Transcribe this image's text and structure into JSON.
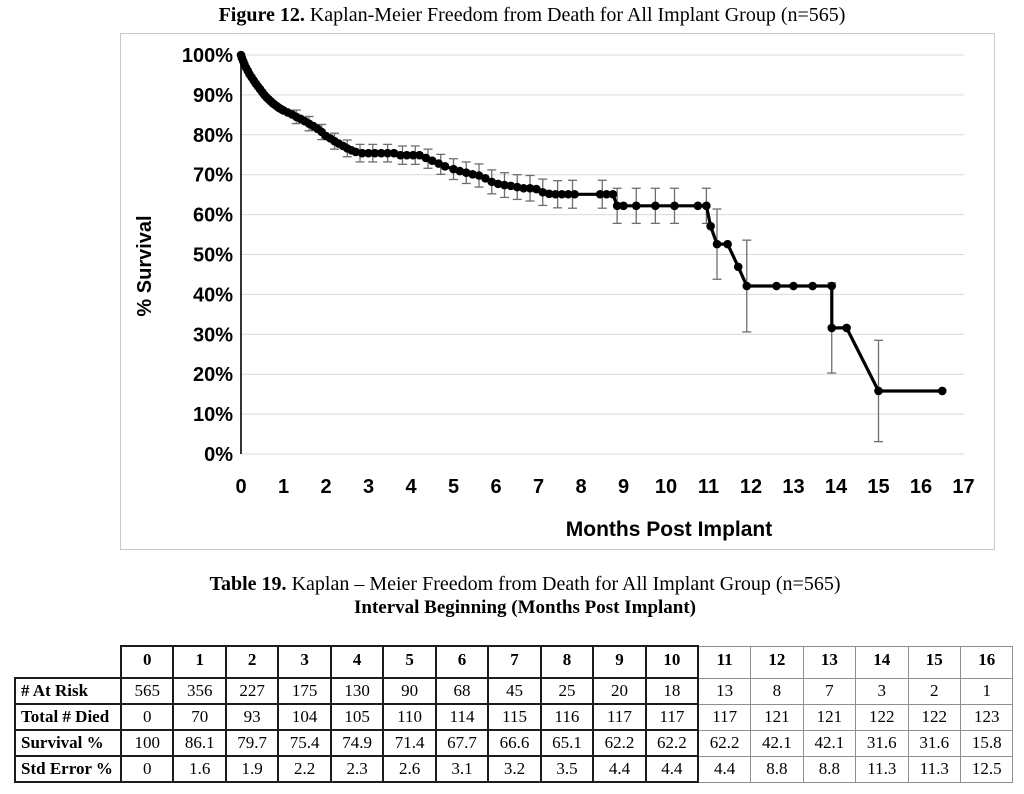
{
  "figure": {
    "title_prefix": "Figure 12.",
    "title_rest": " Kaplan-Meier Freedom from Death for All Implant Group (n=565)"
  },
  "chart_data": {
    "type": "line",
    "title": "",
    "xlabel": "Months Post Implant",
    "ylabel": "% Survival",
    "xlim": [
      0,
      17
    ],
    "ylim": [
      0,
      100
    ],
    "x_ticks": [
      0,
      1,
      2,
      3,
      4,
      5,
      6,
      7,
      8,
      9,
      10,
      11,
      12,
      13,
      14,
      15,
      16,
      17
    ],
    "y_tick_step": 10,
    "grid": "horizontal",
    "legend": "none",
    "series_name": "Freedom from Death (all implant group)",
    "monthly": {
      "months": [
        0,
        1,
        2,
        3,
        4,
        5,
        6,
        7,
        8,
        9,
        10,
        11,
        12,
        13,
        14,
        15,
        16
      ],
      "survival_pct": [
        100,
        86.1,
        79.7,
        75.4,
        74.9,
        71.4,
        67.7,
        66.6,
        65.1,
        62.2,
        62.2,
        62.2,
        42.1,
        42.1,
        31.6,
        31.6,
        15.8
      ],
      "std_error_pct": [
        0,
        1.6,
        1.9,
        2.2,
        2.3,
        2.6,
        3.1,
        3.2,
        3.5,
        4.4,
        4.4,
        4.4,
        8.8,
        8.8,
        11.3,
        11.3,
        12.5
      ]
    },
    "plot_points": [
      [
        0,
        100
      ],
      [
        0.02,
        99.3
      ],
      [
        0.05,
        98.5
      ],
      [
        0.08,
        97.7
      ],
      [
        0.12,
        96.8
      ],
      [
        0.16,
        96.0
      ],
      [
        0.2,
        95.2
      ],
      [
        0.25,
        94.4
      ],
      [
        0.3,
        93.6
      ],
      [
        0.35,
        92.8
      ],
      [
        0.4,
        92.1
      ],
      [
        0.45,
        91.4
      ],
      [
        0.5,
        90.7
      ],
      [
        0.55,
        90.0
      ],
      [
        0.6,
        89.4
      ],
      [
        0.65,
        88.9
      ],
      [
        0.7,
        88.4
      ],
      [
        0.75,
        87.9
      ],
      [
        0.8,
        87.5
      ],
      [
        0.85,
        87.1
      ],
      [
        0.9,
        86.7
      ],
      [
        0.95,
        86.4
      ],
      [
        1.0,
        86.1
      ],
      [
        1.1,
        85.6
      ],
      [
        1.2,
        85.1
      ],
      [
        1.3,
        84.5
      ],
      [
        1.4,
        84.0
      ],
      [
        1.5,
        83.4
      ],
      [
        1.6,
        82.8
      ],
      [
        1.7,
        82.2
      ],
      [
        1.8,
        81.5
      ],
      [
        1.9,
        80.7
      ],
      [
        2.0,
        79.7
      ],
      [
        2.1,
        79.1
      ],
      [
        2.2,
        78.4
      ],
      [
        2.3,
        77.8
      ],
      [
        2.4,
        77.2
      ],
      [
        2.5,
        76.6
      ],
      [
        2.6,
        76.1
      ],
      [
        2.7,
        75.7
      ],
      [
        2.85,
        75.4
      ],
      [
        3.0,
        75.4
      ],
      [
        3.15,
        75.4
      ],
      [
        3.3,
        75.4
      ],
      [
        3.45,
        75.4
      ],
      [
        3.6,
        75.4
      ],
      [
        3.75,
        74.9
      ],
      [
        3.9,
        74.9
      ],
      [
        4.05,
        74.9
      ],
      [
        4.2,
        74.9
      ],
      [
        4.35,
        74.2
      ],
      [
        4.5,
        73.5
      ],
      [
        4.65,
        72.8
      ],
      [
        4.8,
        72.1
      ],
      [
        5.0,
        71.4
      ],
      [
        5.15,
        70.9
      ],
      [
        5.3,
        70.5
      ],
      [
        5.45,
        70.1
      ],
      [
        5.6,
        69.8
      ],
      [
        5.75,
        69.1
      ],
      [
        5.9,
        68.2
      ],
      [
        6.05,
        67.7
      ],
      [
        6.2,
        67.4
      ],
      [
        6.35,
        67.2
      ],
      [
        6.5,
        66.9
      ],
      [
        6.65,
        66.6
      ],
      [
        6.8,
        66.6
      ],
      [
        6.95,
        66.4
      ],
      [
        7.1,
        65.6
      ],
      [
        7.25,
        65.2
      ],
      [
        7.4,
        65.1
      ],
      [
        7.55,
        65.1
      ],
      [
        7.7,
        65.1
      ],
      [
        7.85,
        65.1
      ],
      [
        8.45,
        65.1
      ],
      [
        8.6,
        65.1
      ],
      [
        8.75,
        65.1
      ],
      [
        8.85,
        62.2
      ],
      [
        9.0,
        62.2
      ],
      [
        9.3,
        62.2
      ],
      [
        9.75,
        62.2
      ],
      [
        10.2,
        62.2
      ],
      [
        10.75,
        62.2
      ],
      [
        10.95,
        62.2
      ],
      [
        11.05,
        57.1
      ],
      [
        11.2,
        52.6
      ],
      [
        11.45,
        52.6
      ],
      [
        11.7,
        46.9
      ],
      [
        11.9,
        42.1
      ],
      [
        12.6,
        42.1
      ],
      [
        13.0,
        42.1
      ],
      [
        13.45,
        42.1
      ],
      [
        13.9,
        42.1
      ],
      [
        13.9,
        31.6
      ],
      [
        14.25,
        31.6
      ],
      [
        15.0,
        15.8
      ],
      [
        16.5,
        15.8
      ]
    ],
    "error_bars": [
      [
        1.3,
        84.5,
        1.7
      ],
      [
        1.6,
        82.8,
        1.8
      ],
      [
        1.9,
        80.7,
        1.9
      ],
      [
        2.2,
        78.4,
        2.0
      ],
      [
        2.5,
        76.6,
        2.1
      ],
      [
        2.8,
        75.4,
        2.2
      ],
      [
        3.1,
        75.4,
        2.2
      ],
      [
        3.45,
        75.4,
        2.2
      ],
      [
        3.8,
        74.9,
        2.3
      ],
      [
        4.1,
        74.9,
        2.3
      ],
      [
        4.4,
        74.0,
        2.4
      ],
      [
        4.7,
        72.6,
        2.5
      ],
      [
        5.0,
        71.4,
        2.6
      ],
      [
        5.3,
        70.5,
        2.7
      ],
      [
        5.6,
        69.8,
        2.9
      ],
      [
        5.9,
        68.2,
        3.0
      ],
      [
        6.2,
        67.4,
        3.1
      ],
      [
        6.5,
        66.9,
        3.1
      ],
      [
        6.8,
        66.6,
        3.2
      ],
      [
        7.1,
        65.6,
        3.3
      ],
      [
        7.45,
        65.1,
        3.4
      ],
      [
        7.8,
        65.1,
        3.5
      ],
      [
        8.5,
        65.1,
        3.5
      ],
      [
        8.85,
        62.2,
        4.4
      ],
      [
        9.3,
        62.2,
        4.4
      ],
      [
        9.75,
        62.2,
        4.4
      ],
      [
        10.2,
        62.2,
        4.4
      ],
      [
        10.95,
        62.2,
        4.4
      ],
      [
        11.2,
        52.6,
        8.8
      ],
      [
        11.9,
        42.1,
        11.5
      ],
      [
        13.9,
        31.6,
        11.3
      ],
      [
        15.0,
        15.8,
        12.7
      ]
    ]
  },
  "table": {
    "title_prefix": "Table 19.",
    "title_rest": " Kaplan – Meier Freedom from Death for All Implant Group (n=565)",
    "subtitle": "Interval Beginning (Months Post Implant)",
    "col_headers": [
      "0",
      "1",
      "2",
      "3",
      "4",
      "5",
      "6",
      "7",
      "8",
      "9",
      "10",
      "11",
      "12",
      "13",
      "14",
      "15",
      "16"
    ],
    "rows": [
      {
        "label": "# At Risk",
        "values": [
          "565",
          "356",
          "227",
          "175",
          "130",
          "90",
          "68",
          "45",
          "25",
          "20",
          "18",
          "13",
          "8",
          "7",
          "3",
          "2",
          "1"
        ]
      },
      {
        "label": "Total # Died",
        "values": [
          "0",
          "70",
          "93",
          "104",
          "105",
          "110",
          "114",
          "115",
          "116",
          "117",
          "117",
          "117",
          "121",
          "121",
          "122",
          "122",
          "123"
        ]
      },
      {
        "label": "Survival %",
        "values": [
          "100",
          "86.1",
          "79.7",
          "75.4",
          "74.9",
          "71.4",
          "67.7",
          "66.6",
          "65.1",
          "62.2",
          "62.2",
          "62.2",
          "42.1",
          "42.1",
          "31.6",
          "31.6",
          "15.8"
        ]
      },
      {
        "label": "Std Error %",
        "values": [
          "0",
          "1.6",
          "1.9",
          "2.2",
          "2.3",
          "2.6",
          "3.1",
          "3.2",
          "3.5",
          "4.4",
          "4.4",
          "4.4",
          "8.8",
          "8.8",
          "11.3",
          "11.3",
          "12.5"
        ]
      }
    ]
  },
  "colors": {
    "line": "#000000",
    "marker": "#000000",
    "error_bar": "#6e6e6e",
    "gridline": "#d9d9d9",
    "axis": "#000000",
    "chart_border": "#c9c9c9",
    "table_border_heavy": "#1c1c1c",
    "table_border_light": "#8f8f8f"
  }
}
